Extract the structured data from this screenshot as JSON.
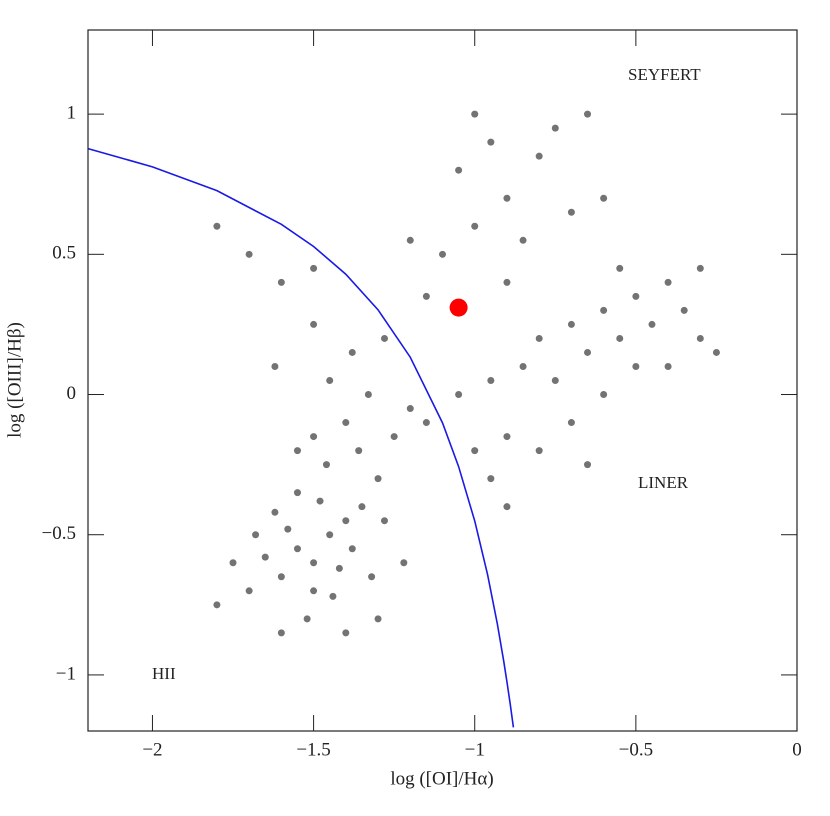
{
  "chart_data": {
    "type": "scatter",
    "x_label": "log ([OI]/Hα)",
    "y_label": "log ([OIII]/Hβ)",
    "annotations": [
      "SEYFERT",
      "LINER",
      "HII"
    ],
    "xlim": [
      -2.2,
      0
    ],
    "ylim": [
      -1.2,
      1.3
    ],
    "xticks": [
      {
        "value": -2,
        "label": "−2"
      },
      {
        "value": -1.5,
        "label": "−1.5"
      },
      {
        "value": -1,
        "label": "−1"
      },
      {
        "value": -0.5,
        "label": "−0.5"
      },
      0
    ],
    "yticks": [
      {
        "value": -1,
        "label": "−1"
      },
      {
        "value": -0.5,
        "label": "−0.5"
      },
      0,
      0.5,
      1
    ],
    "series": [
      {
        "mode": "markers",
        "color": "#000000",
        "x": [
          -1.5,
          -1.55,
          -1.45,
          -1.4,
          -1.6,
          -1.5,
          -1.35,
          -1.42,
          -1.58,
          -1.48,
          -1.38,
          -1.65,
          -1.52,
          -1.44,
          -1.3,
          -1.36,
          -1.46,
          -1.55,
          -1.62,
          -1.7,
          -1.68,
          -1.4,
          -1.32,
          -1.28,
          -1.25,
          -1.4,
          -1.5,
          -1.33,
          -1.45,
          -1.2,
          -1.75,
          -1.8,
          -1.6,
          -1.3,
          -1.22,
          -1.55,
          -1.38,
          -1.28,
          -1.5,
          -1.62,
          -1.15,
          -1.05,
          -0.95,
          -0.9,
          -0.85,
          -0.8,
          -0.75,
          -0.7,
          -0.65,
          -0.6,
          -0.55,
          -0.5,
          -0.45,
          -0.4,
          -0.35,
          -0.3,
          -0.5,
          -0.6,
          -0.7,
          -0.8,
          -0.95,
          -1.0,
          -0.55,
          -0.4,
          -0.3,
          -0.25,
          -0.65,
          -0.9,
          -1.1,
          -1.0,
          -0.9,
          -0.8,
          -1.05,
          -0.95,
          -0.85,
          -0.7,
          -0.75,
          -1.15,
          -1.2,
          -0.6,
          -0.65,
          -1.0,
          -0.9,
          -1.6,
          -1.7,
          -1.8,
          -1.5
        ],
        "values": [
          -0.6,
          -0.55,
          -0.5,
          -0.45,
          -0.65,
          -0.7,
          -0.4,
          -0.62,
          -0.48,
          -0.38,
          -0.55,
          -0.58,
          -0.8,
          -0.72,
          -0.3,
          -0.2,
          -0.25,
          -0.35,
          -0.42,
          -0.7,
          -0.5,
          -0.85,
          -0.65,
          -0.45,
          -0.15,
          -0.1,
          -0.15,
          0.0,
          0.05,
          -0.05,
          -0.6,
          -0.75,
          -0.85,
          -0.8,
          -0.6,
          -0.2,
          0.15,
          0.2,
          0.25,
          0.1,
          -0.1,
          0.0,
          0.05,
          -0.15,
          0.1,
          0.2,
          0.05,
          0.25,
          0.15,
          0.3,
          0.2,
          0.35,
          0.25,
          0.4,
          0.3,
          0.2,
          0.1,
          0.0,
          -0.1,
          -0.2,
          -0.3,
          -0.2,
          0.45,
          0.1,
          0.45,
          0.15,
          -0.25,
          -0.4,
          0.5,
          0.6,
          0.7,
          0.85,
          0.8,
          0.9,
          0.55,
          0.65,
          0.95,
          0.35,
          0.55,
          0.7,
          1.0,
          1.0,
          0.4,
          0.4,
          0.5,
          0.6,
          0.45
        ]
      },
      {
        "mode": "lines",
        "color": "#1a1ae6",
        "x": [
          -2.2,
          -2.0,
          -1.8,
          -1.6,
          -1.5,
          -1.4,
          -1.3,
          -1.2,
          -1.1,
          -1.05,
          -1.0,
          -0.96,
          -0.93,
          -0.91,
          -0.9,
          -0.89,
          -0.88
        ],
        "values": [
          0.877,
          0.812,
          0.727,
          0.607,
          0.528,
          0.429,
          0.302,
          0.133,
          -0.101,
          -0.257,
          -0.451,
          -0.643,
          -0.817,
          -0.951,
          -1.025,
          -1.103,
          -1.187
        ]
      },
      {
        "mode": "highlight",
        "color": "#ff0000",
        "x": [
          -1.05
        ],
        "values": [
          0.31
        ]
      }
    ]
  }
}
